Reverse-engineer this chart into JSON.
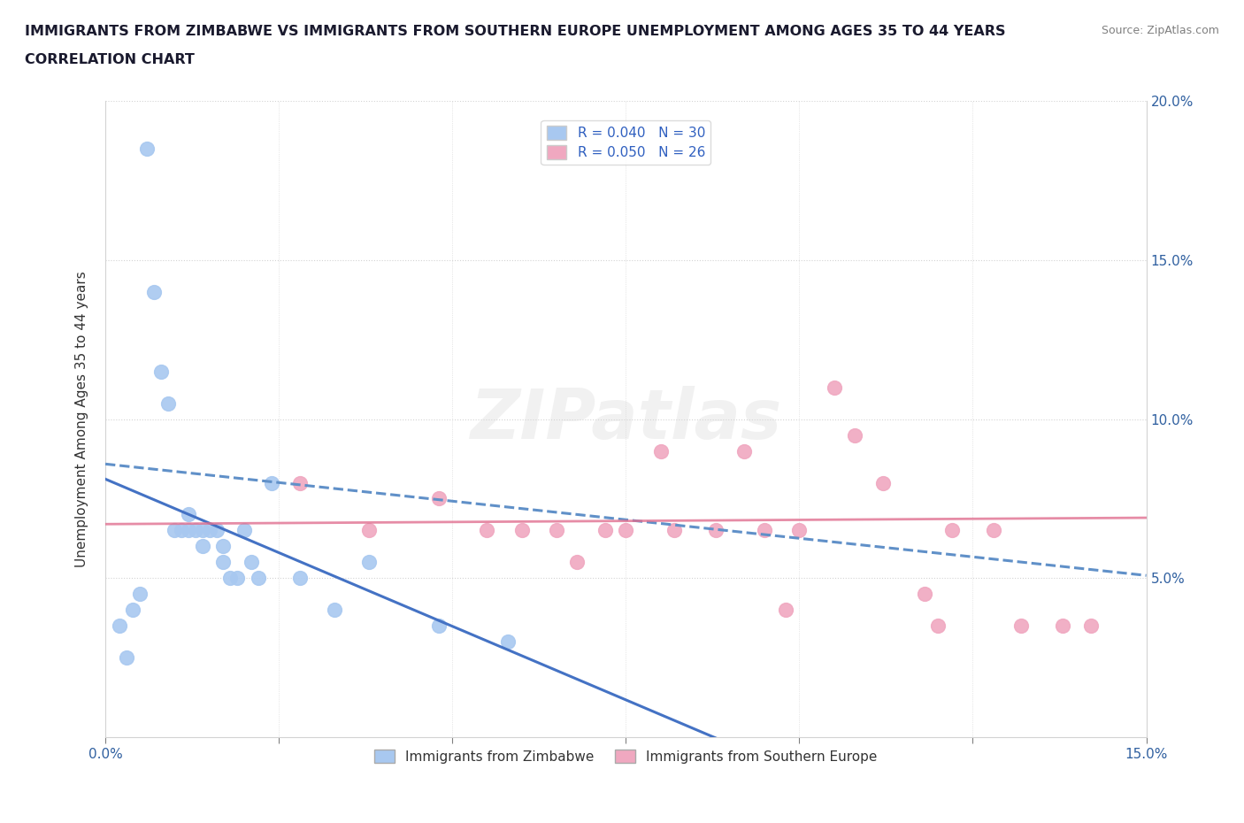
{
  "title_line1": "IMMIGRANTS FROM ZIMBABWE VS IMMIGRANTS FROM SOUTHERN EUROPE UNEMPLOYMENT AMONG AGES 35 TO 44 YEARS",
  "title_line2": "CORRELATION CHART",
  "source_text": "Source: ZipAtlas.com",
  "ylabel": "Unemployment Among Ages 35 to 44 years",
  "xlim": [
    0.0,
    0.15
  ],
  "ylim": [
    0.0,
    0.2
  ],
  "zimbabwe_R": 0.04,
  "zimbabwe_N": 30,
  "southern_europe_R": 0.05,
  "southern_europe_N": 26,
  "zimbabwe_color": "#a8c8f0",
  "southern_europe_color": "#f0a8c0",
  "trendline_zimbabwe_color": "#4472c4",
  "trendline_southern_europe_color": "#6090c8",
  "trendline_pink_color": "#e07090",
  "watermark": "ZIPatlas",
  "zimbabwe_points": [
    [
      0.002,
      0.035
    ],
    [
      0.003,
      0.025
    ],
    [
      0.004,
      0.04
    ],
    [
      0.005,
      0.045
    ],
    [
      0.006,
      0.185
    ],
    [
      0.007,
      0.14
    ],
    [
      0.008,
      0.115
    ],
    [
      0.009,
      0.105
    ],
    [
      0.01,
      0.065
    ],
    [
      0.011,
      0.065
    ],
    [
      0.012,
      0.065
    ],
    [
      0.012,
      0.07
    ],
    [
      0.013,
      0.065
    ],
    [
      0.014,
      0.065
    ],
    [
      0.014,
      0.06
    ],
    [
      0.015,
      0.065
    ],
    [
      0.016,
      0.065
    ],
    [
      0.017,
      0.06
    ],
    [
      0.017,
      0.055
    ],
    [
      0.018,
      0.05
    ],
    [
      0.019,
      0.05
    ],
    [
      0.02,
      0.065
    ],
    [
      0.021,
      0.055
    ],
    [
      0.022,
      0.05
    ],
    [
      0.024,
      0.08
    ],
    [
      0.028,
      0.05
    ],
    [
      0.033,
      0.04
    ],
    [
      0.038,
      0.055
    ],
    [
      0.048,
      0.035
    ],
    [
      0.058,
      0.03
    ]
  ],
  "southern_europe_points": [
    [
      0.028,
      0.08
    ],
    [
      0.038,
      0.065
    ],
    [
      0.048,
      0.075
    ],
    [
      0.055,
      0.065
    ],
    [
      0.06,
      0.065
    ],
    [
      0.065,
      0.065
    ],
    [
      0.068,
      0.055
    ],
    [
      0.072,
      0.065
    ],
    [
      0.075,
      0.065
    ],
    [
      0.08,
      0.09
    ],
    [
      0.082,
      0.065
    ],
    [
      0.088,
      0.065
    ],
    [
      0.092,
      0.09
    ],
    [
      0.095,
      0.065
    ],
    [
      0.098,
      0.04
    ],
    [
      0.1,
      0.065
    ],
    [
      0.105,
      0.11
    ],
    [
      0.108,
      0.095
    ],
    [
      0.112,
      0.08
    ],
    [
      0.118,
      0.045
    ],
    [
      0.12,
      0.035
    ],
    [
      0.122,
      0.065
    ],
    [
      0.128,
      0.065
    ],
    [
      0.132,
      0.035
    ],
    [
      0.138,
      0.035
    ],
    [
      0.142,
      0.035
    ]
  ]
}
